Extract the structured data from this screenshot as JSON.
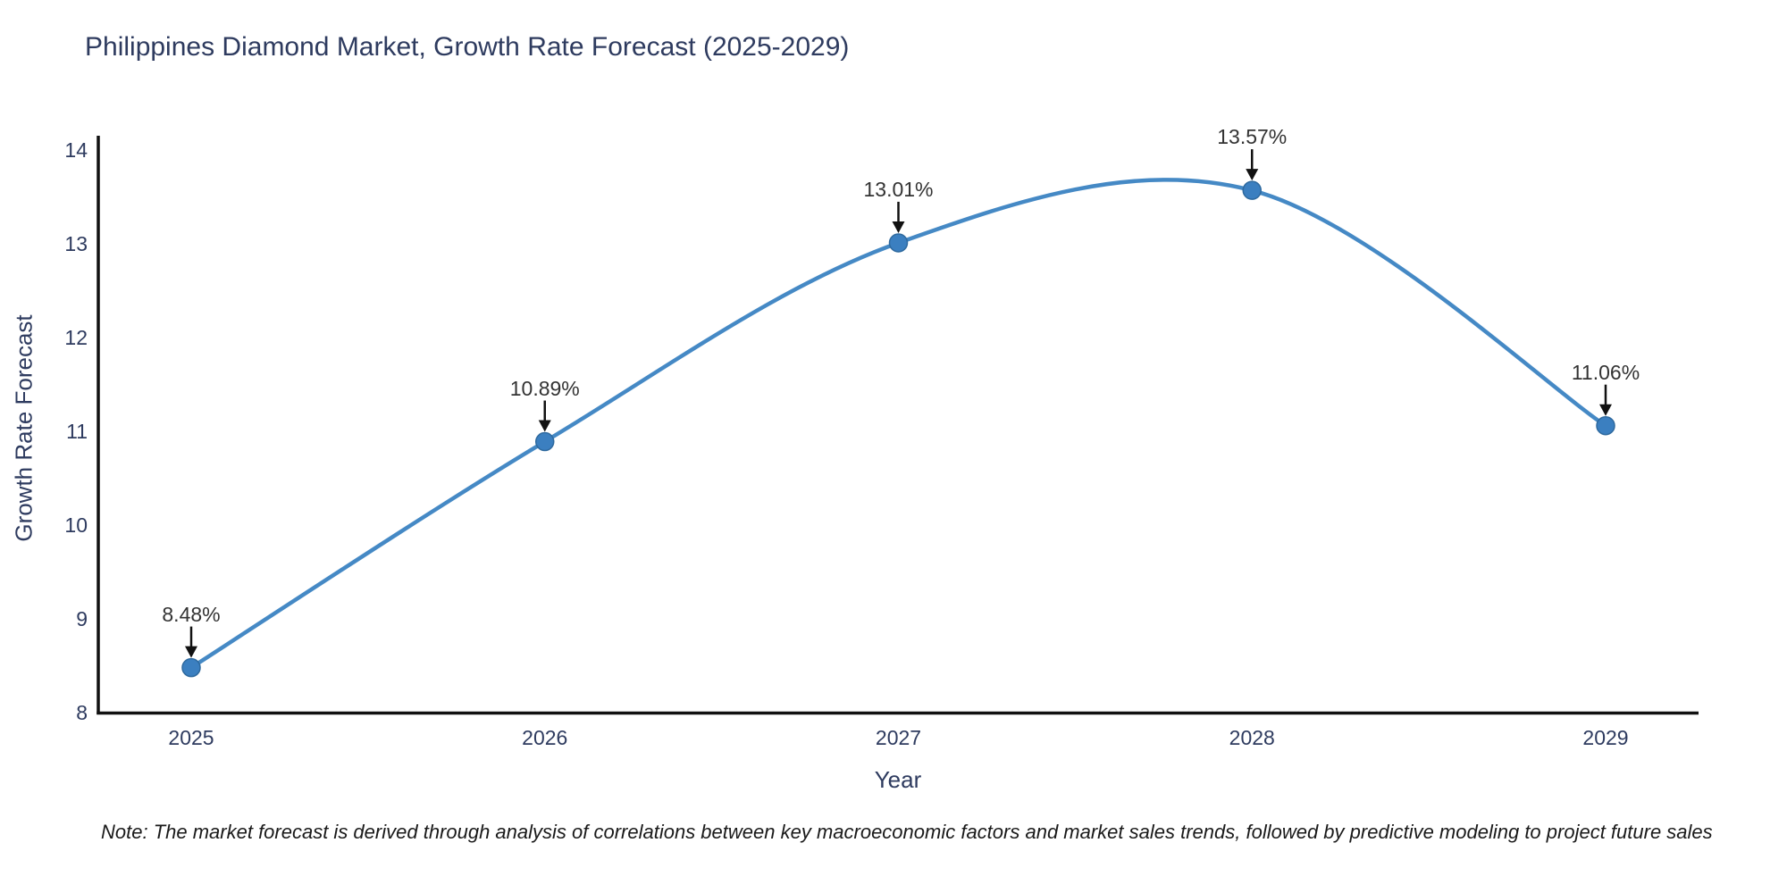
{
  "chart_data": {
    "type": "line",
    "line_shape": "spline",
    "title": "Philippines Diamond Market, Growth Rate Forecast (2025-2029)",
    "xlabel": "Year",
    "ylabel": "Growth Rate Forecast",
    "x": [
      2025,
      2026,
      2027,
      2028,
      2029
    ],
    "values": [
      8.48,
      10.89,
      13.01,
      13.57,
      11.06
    ],
    "point_labels": [
      "8.48%",
      "10.89%",
      "13.01%",
      "13.57%",
      "11.06%"
    ],
    "ylim": [
      8,
      14
    ],
    "yticks": [
      8,
      9,
      10,
      11,
      12,
      13,
      14
    ],
    "grid": false,
    "legend": "none",
    "annotations_have_arrows": true,
    "colors": {
      "line": "#4589c5",
      "marker_fill": "#3b7fc0",
      "marker_edge": "#2e699e",
      "axis": "#111111",
      "axis_text": "#2e3b5f",
      "annotation_text": "#333333",
      "arrow": "#111111"
    }
  },
  "footer": {
    "note": "Note: The market forecast is derived through analysis of correlations between key macroeconomic factors and market sales trends, followed by predictive modeling to project future sales"
  }
}
